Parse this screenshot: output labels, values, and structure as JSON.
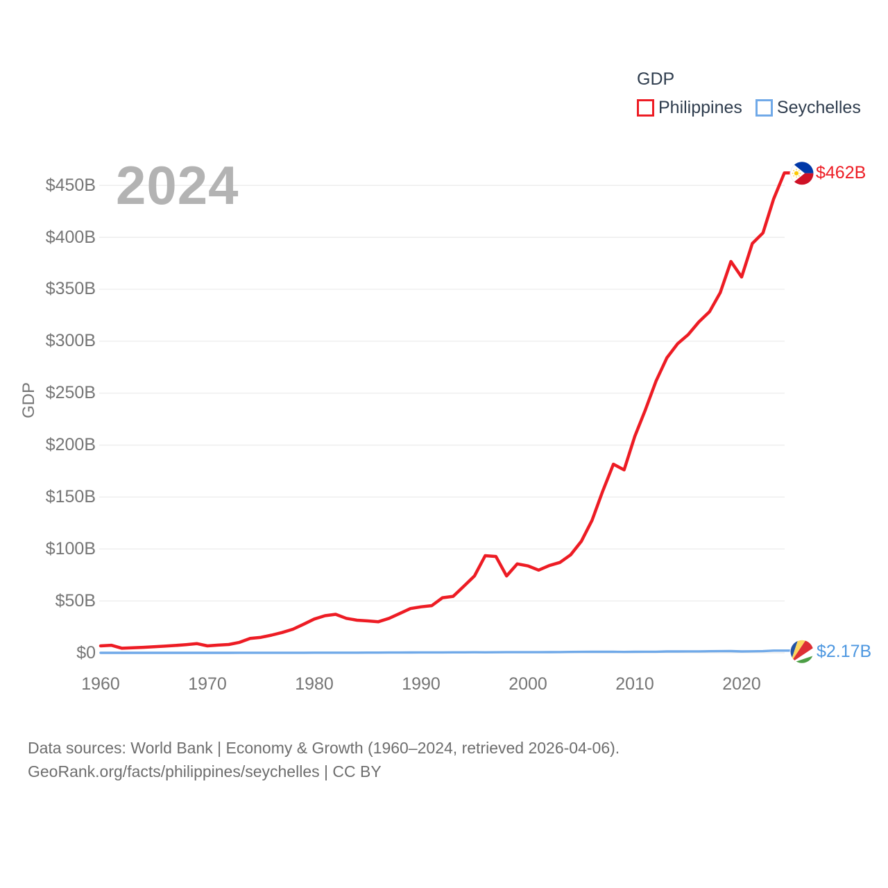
{
  "legend": {
    "title": "GDP",
    "items": [
      {
        "label": "Philippines",
        "color": "#ed1c24"
      },
      {
        "label": "Seychelles",
        "color": "#70a9e8"
      }
    ]
  },
  "watermark_year": "2024",
  "y_axis_title": "GDP",
  "end_labels": {
    "philippines": "$462B",
    "seychelles": "$2.17B"
  },
  "end_label_colors": {
    "philippines": "#ed1c24",
    "seychelles": "#4d97e0"
  },
  "footer": {
    "line1": "Data sources: World Bank | Economy & Growth (1960–2024, retrieved 2026-04-06).",
    "line2": "GeoRank.org/facts/philippines/seychelles | CC BY"
  },
  "chart_data": {
    "type": "line",
    "title": "GDP",
    "xlabel": "",
    "ylabel": "GDP",
    "xlim": [
      1960,
      2024
    ],
    "ylim": [
      0,
      475
    ],
    "grid": true,
    "legend_position": "top-right",
    "x_ticks": [
      1960,
      1970,
      1980,
      1990,
      2000,
      2010,
      2020
    ],
    "y_ticks": {
      "values": [
        0,
        50,
        100,
        150,
        200,
        250,
        300,
        350,
        400,
        450
      ],
      "labels": [
        "$0",
        "$50B",
        "$100B",
        "$150B",
        "$200B",
        "$250B",
        "$300B",
        "$350B",
        "$400B",
        "$450B"
      ]
    },
    "x": [
      1960,
      1961,
      1962,
      1963,
      1964,
      1965,
      1966,
      1967,
      1968,
      1969,
      1970,
      1971,
      1972,
      1973,
      1974,
      1975,
      1976,
      1977,
      1978,
      1979,
      1980,
      1981,
      1982,
      1983,
      1984,
      1985,
      1986,
      1987,
      1988,
      1989,
      1990,
      1991,
      1992,
      1993,
      1994,
      1995,
      1996,
      1997,
      1998,
      1999,
      2000,
      2001,
      2002,
      2003,
      2004,
      2005,
      2006,
      2007,
      2008,
      2009,
      2010,
      2011,
      2012,
      2013,
      2014,
      2015,
      2016,
      2017,
      2018,
      2019,
      2020,
      2021,
      2022,
      2023,
      2024
    ],
    "series": [
      {
        "name": "Philippines",
        "color": "#ed1c24",
        "label_color": "#ed1c24",
        "end_label": "$462B",
        "flag": "philippines",
        "values": [
          6.7,
          7.3,
          4.4,
          4.8,
          5.3,
          5.8,
          6.4,
          7.1,
          7.9,
          8.9,
          6.7,
          7.4,
          8.0,
          10.1,
          13.8,
          14.9,
          17.0,
          19.6,
          22.7,
          27.5,
          32.5,
          35.7,
          37.1,
          33.2,
          31.4,
          30.7,
          29.9,
          33.2,
          37.9,
          42.6,
          44.3,
          45.4,
          53.0,
          54.4,
          64.1,
          74.1,
          93.5,
          92.8,
          74.0,
          85.6,
          83.7,
          79.6,
          84.0,
          87.0,
          94.4,
          107.4,
          127.6,
          155.7,
          181.6,
          176.1,
          208.4,
          234.2,
          261.9,
          283.9,
          297.5,
          306.4,
          318.6,
          328.5,
          346.8,
          376.8,
          361.8,
          394.1,
          404.3,
          437.1,
          462.0
        ]
      },
      {
        "name": "Seychelles",
        "color": "#70a9e8",
        "label_color": "#4d97e0",
        "end_label": "$2.17B",
        "flag": "seychelles",
        "values": [
          0.01,
          0.01,
          0.01,
          0.01,
          0.02,
          0.02,
          0.02,
          0.02,
          0.02,
          0.02,
          0.02,
          0.03,
          0.03,
          0.04,
          0.04,
          0.04,
          0.05,
          0.06,
          0.08,
          0.1,
          0.15,
          0.16,
          0.15,
          0.15,
          0.16,
          0.17,
          0.2,
          0.25,
          0.28,
          0.32,
          0.37,
          0.37,
          0.43,
          0.47,
          0.49,
          0.51,
          0.5,
          0.56,
          0.61,
          0.62,
          0.61,
          0.59,
          0.7,
          0.71,
          0.84,
          0.92,
          1.02,
          1.03,
          0.97,
          0.85,
          0.97,
          1.06,
          1.06,
          1.32,
          1.34,
          1.38,
          1.43,
          1.54,
          1.59,
          1.7,
          1.32,
          1.45,
          1.59,
          2.14,
          2.17
        ]
      }
    ]
  }
}
